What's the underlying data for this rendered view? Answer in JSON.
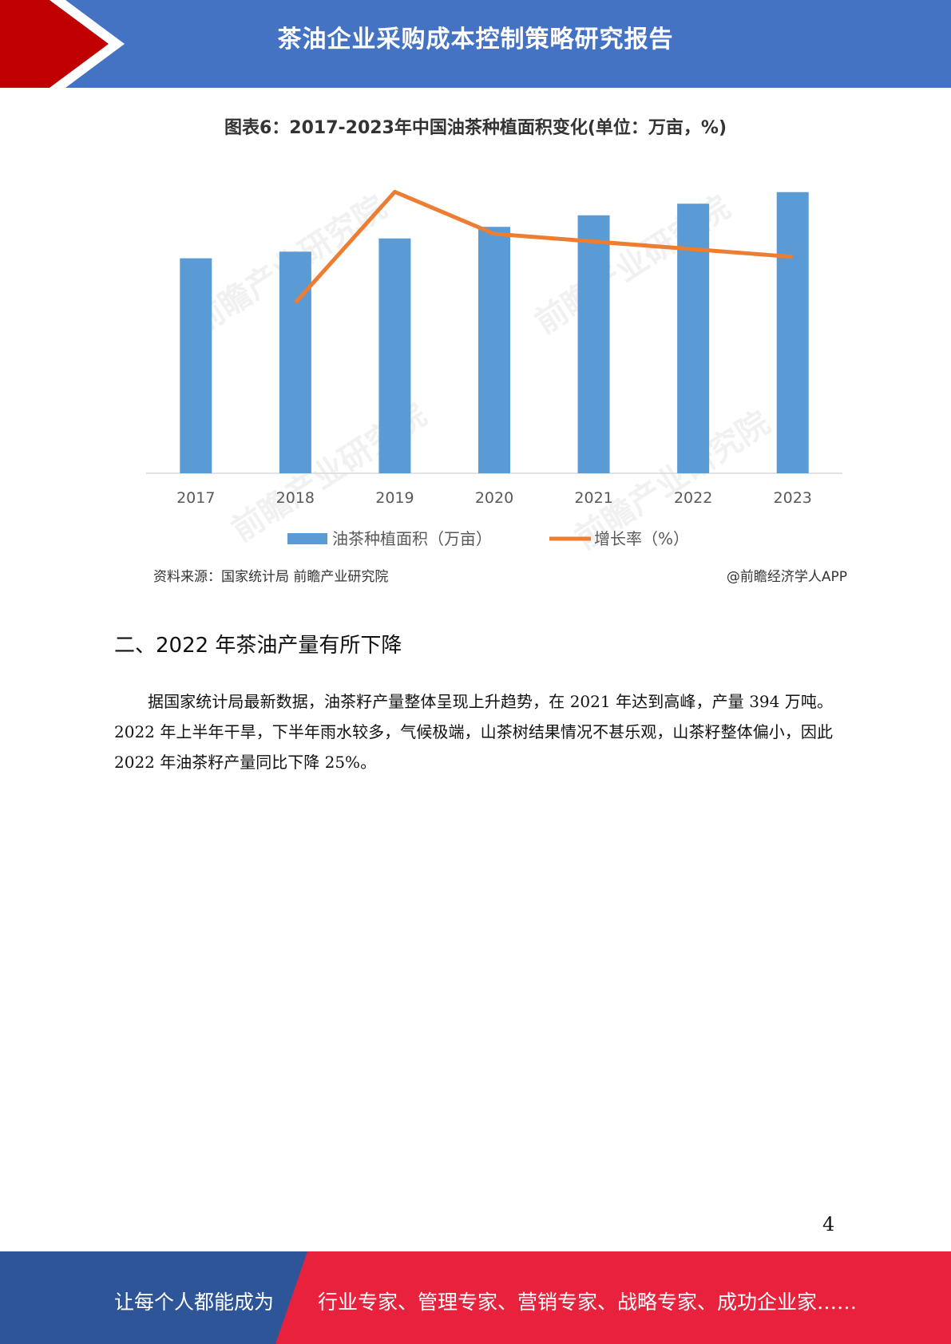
{
  "header": {
    "title": "茶油企业采购成本控制策略研究报告"
  },
  "chart_data": {
    "type": "bar",
    "title": "图表6：2017-2023年中国油茶种植面积变化(单位：万亩，%)",
    "categories": [
      "2017",
      "2018",
      "2019",
      "2020",
      "2021",
      "2022",
      "2023"
    ],
    "series": [
      {
        "name": "油茶种植面积（万亩）",
        "type": "bar",
        "color": "#5b9bd5",
        "values": [
          6500,
          6700,
          7100,
          7450,
          7800,
          8150,
          8500
        ]
      },
      {
        "name": "增长率（%）",
        "type": "line",
        "color": "#ed7d31",
        "values": [
          null,
          3.1,
          6.0,
          4.9,
          4.7,
          4.5,
          4.3
        ]
      }
    ],
    "y_bar_range": [
      0,
      9000
    ],
    "grid": false,
    "legend": "bottom"
  },
  "watermark": {
    "text": "前瞻产业研究院"
  },
  "source": {
    "left": "资料来源：国家统计局 前瞻产业研究院",
    "right": "@前瞻经济学人APP"
  },
  "section": {
    "heading": "二、2022 年茶油产量有所下降",
    "paragraph": "据国家统计局最新数据，油茶籽产量整体呈现上升趋势，在 2021 年达到高峰，产量 394 万吨。2022 年上半年干旱，下半年雨水较多，气候极端，山茶树结果情况不甚乐观，山茶籽整体偏小，因此 2022 年油茶籽产量同比下降 25%。"
  },
  "page_number": "4",
  "footer": {
    "left_text": "让每个人都能成为",
    "right_text": "行业专家、管理专家、营销专家、战略专家、成功企业家……"
  },
  "colors": {
    "header_blue": "#4573c4",
    "accent_red": "#c00000",
    "footer_blue": "#2e5597",
    "footer_red": "#e8223d"
  }
}
